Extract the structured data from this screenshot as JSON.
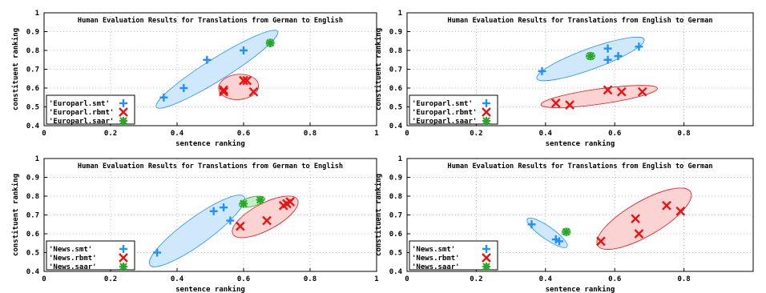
{
  "chart_data": [
    {
      "type": "scatter",
      "title": "Human Evaluation Results for Translations from German to English",
      "xlabel": "sentence ranking",
      "ylabel": "constituent ranking",
      "xlim": [
        0,
        1
      ],
      "ylim": [
        0.4,
        1
      ],
      "xticks": [
        {
          "v": 0,
          "label": "0"
        },
        {
          "v": 0.2,
          "label": "0.2"
        },
        {
          "v": 0.4,
          "label": "0.4"
        },
        {
          "v": 0.6,
          "label": "0.6"
        },
        {
          "v": 0.8,
          "label": "0.8"
        },
        {
          "v": 1,
          "label": "1"
        }
      ],
      "yticks": [
        {
          "v": 0.4,
          "label": "0.4"
        },
        {
          "v": 0.5,
          "label": "0.5"
        },
        {
          "v": 0.6,
          "label": "0.6"
        },
        {
          "v": 0.7,
          "label": "0.7"
        },
        {
          "v": 0.8,
          "label": "0.8"
        },
        {
          "v": 0.9,
          "label": "0.9"
        },
        {
          "v": 1,
          "label": "1"
        }
      ],
      "grid": true,
      "legend_position": "bottom-left",
      "series": [
        {
          "name": "'Europarl.smt'",
          "marker": "plus",
          "color": "#1e90ff",
          "fill": "#cfe8fb",
          "points": [
            [
              0.36,
              0.55
            ],
            [
              0.42,
              0.6
            ],
            [
              0.49,
              0.75
            ],
            [
              0.6,
              0.8
            ],
            [
              0.68,
              0.84
            ]
          ],
          "ellipse": {
            "cx": 0.52,
            "cy": 0.7,
            "rx": 0.215,
            "ry": 0.033,
            "angle_deg": 32
          }
        },
        {
          "name": "'Europarl.rbmt'",
          "marker": "cross",
          "color": "#ee1111",
          "fill": "#fbd3d3",
          "points": [
            [
              0.54,
              0.59
            ],
            [
              0.54,
              0.58
            ],
            [
              0.6,
              0.64
            ],
            [
              0.61,
              0.64
            ],
            [
              0.63,
              0.58
            ]
          ],
          "ellipse": {
            "cx": 0.585,
            "cy": 0.606,
            "rx": 0.06,
            "ry": 0.038,
            "angle_deg": 5
          }
        },
        {
          "name": "'Europarl.saar'",
          "marker": "star",
          "color": "#22aa22",
          "fill": "#c9ecc9",
          "points": [
            [
              0.68,
              0.84
            ]
          ],
          "ellipse": {
            "cx": 0.68,
            "cy": 0.84,
            "rx": 0.012,
            "ry": 0.012,
            "angle_deg": 0
          }
        }
      ]
    },
    {
      "type": "scatter",
      "title": "Human Evaluation Results for Translations from English to German",
      "xlabel": "sentence ranking",
      "ylabel": "constituent ranking",
      "xlim": [
        0,
        1
      ],
      "ylim": [
        0.4,
        1
      ],
      "xticks": [
        {
          "v": 0,
          "label": "0"
        },
        {
          "v": 0.2,
          "label": "0.2"
        },
        {
          "v": 0.4,
          "label": "0.4"
        },
        {
          "v": 0.6,
          "label": "0.6"
        },
        {
          "v": 0.8,
          "label": "0.8"
        }
      ],
      "yticks": [
        {
          "v": 0.4,
          "label": "0.4"
        },
        {
          "v": 0.5,
          "label": "0.5"
        },
        {
          "v": 0.6,
          "label": "0.6"
        },
        {
          "v": 0.7,
          "label": "0.7"
        },
        {
          "v": 0.8,
          "label": "0.8"
        },
        {
          "v": 0.9,
          "label": "0.9"
        },
        {
          "v": 1,
          "label": "1"
        }
      ],
      "grid": true,
      "legend_position": "bottom-left",
      "series": [
        {
          "name": "'Europarl.smt'",
          "marker": "plus",
          "color": "#1e90ff",
          "fill": "#cfe8fb",
          "points": [
            [
              0.39,
              0.69
            ],
            [
              0.58,
              0.75
            ],
            [
              0.58,
              0.81
            ],
            [
              0.61,
              0.77
            ],
            [
              0.67,
              0.82
            ]
          ],
          "ellipse": {
            "cx": 0.53,
            "cy": 0.755,
            "rx": 0.165,
            "ry": 0.03,
            "angle_deg": 20
          }
        },
        {
          "name": "'Europarl.rbmt'",
          "marker": "cross",
          "color": "#ee1111",
          "fill": "#fbd3d3",
          "points": [
            [
              0.43,
              0.52
            ],
            [
              0.47,
              0.51
            ],
            [
              0.58,
              0.59
            ],
            [
              0.62,
              0.58
            ],
            [
              0.68,
              0.58
            ]
          ],
          "ellipse": {
            "cx": 0.555,
            "cy": 0.555,
            "rx": 0.17,
            "ry": 0.022,
            "angle_deg": 8
          }
        },
        {
          "name": "'Europarl.saar'",
          "marker": "star",
          "color": "#22aa22",
          "fill": "#c9ecc9",
          "points": [
            [
              0.53,
              0.77
            ]
          ],
          "ellipse": {
            "cx": 0.53,
            "cy": 0.77,
            "rx": 0.013,
            "ry": 0.011,
            "angle_deg": 0
          }
        }
      ]
    },
    {
      "type": "scatter",
      "title": "Human Evaluation Results for Translations from German to English",
      "xlabel": "sentence ranking",
      "ylabel": "constituent ranking",
      "xlim": [
        0,
        1
      ],
      "ylim": [
        0.4,
        1
      ],
      "xticks": [
        {
          "v": 0,
          "label": "0"
        },
        {
          "v": 0.2,
          "label": "0.2"
        },
        {
          "v": 0.4,
          "label": "0.4"
        },
        {
          "v": 0.6,
          "label": "0.6"
        },
        {
          "v": 0.8,
          "label": "0.8"
        },
        {
          "v": 1,
          "label": "1"
        }
      ],
      "yticks": [
        {
          "v": 0.4,
          "label": "0.4"
        },
        {
          "v": 0.5,
          "label": "0.5"
        },
        {
          "v": 0.6,
          "label": "0.6"
        },
        {
          "v": 0.7,
          "label": "0.7"
        },
        {
          "v": 0.8,
          "label": "0.8"
        },
        {
          "v": 0.9,
          "label": "0.9"
        },
        {
          "v": 1,
          "label": "1"
        }
      ],
      "grid": true,
      "legend_position": "bottom-left",
      "series": [
        {
          "name": "'News.smt'",
          "marker": "plus",
          "color": "#1e90ff",
          "fill": "#cfe8fb",
          "points": [
            [
              0.34,
              0.5
            ],
            [
              0.51,
              0.72
            ],
            [
              0.54,
              0.74
            ],
            [
              0.56,
              0.67
            ]
          ],
          "ellipse": {
            "cx": 0.46,
            "cy": 0.615,
            "rx": 0.175,
            "ry": 0.04,
            "angle_deg": 36
          }
        },
        {
          "name": "'News.rbmt'",
          "marker": "cross",
          "color": "#ee1111",
          "fill": "#fbd3d3",
          "points": [
            [
              0.59,
              0.64
            ],
            [
              0.67,
              0.67
            ],
            [
              0.72,
              0.75
            ],
            [
              0.73,
              0.76
            ],
            [
              0.74,
              0.77
            ]
          ],
          "ellipse": {
            "cx": 0.665,
            "cy": 0.69,
            "rx": 0.11,
            "ry": 0.04,
            "angle_deg": 28
          }
        },
        {
          "name": "'News.saar'",
          "marker": "star",
          "color": "#22aa22",
          "fill": "#c9ecc9",
          "points": [
            [
              0.6,
              0.76
            ],
            [
              0.65,
              0.78
            ]
          ],
          "ellipse": {
            "cx": 0.625,
            "cy": 0.77,
            "rx": 0.04,
            "ry": 0.014,
            "angle_deg": 15
          }
        }
      ]
    },
    {
      "type": "scatter",
      "title": "Human Evaluation Results for Translations from English to German",
      "xlabel": "sentence ranking",
      "ylabel": "constituent ranking",
      "xlim": [
        0,
        1
      ],
      "ylim": [
        0.4,
        1
      ],
      "xticks": [
        {
          "v": 0,
          "label": "0"
        },
        {
          "v": 0.2,
          "label": "0.2"
        },
        {
          "v": 0.4,
          "label": "0.4"
        },
        {
          "v": 0.6,
          "label": "0.6"
        },
        {
          "v": 0.8,
          "label": "0.8"
        }
      ],
      "yticks": [
        {
          "v": 0.4,
          "label": "0.4"
        },
        {
          "v": 0.5,
          "label": "0.5"
        },
        {
          "v": 0.6,
          "label": "0.6"
        },
        {
          "v": 0.7,
          "label": "0.7"
        },
        {
          "v": 0.8,
          "label": "0.8"
        },
        {
          "v": 0.9,
          "label": "0.9"
        },
        {
          "v": 1,
          "label": "1"
        }
      ],
      "grid": true,
      "legend_position": "bottom-left",
      "series": [
        {
          "name": "'News.smt'",
          "marker": "plus",
          "color": "#1e90ff",
          "fill": "#cfe8fb",
          "points": [
            [
              0.36,
              0.65
            ],
            [
              0.43,
              0.57
            ],
            [
              0.44,
              0.56
            ]
          ],
          "ellipse": {
            "cx": 0.405,
            "cy": 0.605,
            "rx": 0.07,
            "ry": 0.018,
            "angle_deg": -35
          }
        },
        {
          "name": "'News.rbmt'",
          "marker": "cross",
          "color": "#ee1111",
          "fill": "#fbd3d3",
          "points": [
            [
              0.56,
              0.56
            ],
            [
              0.66,
              0.68
            ],
            [
              0.67,
              0.6
            ],
            [
              0.75,
              0.75
            ],
            [
              0.79,
              0.72
            ]
          ],
          "ellipse": {
            "cx": 0.685,
            "cy": 0.68,
            "rx": 0.155,
            "ry": 0.05,
            "angle_deg": 30
          }
        },
        {
          "name": "'News.saar'",
          "marker": "star",
          "color": "#22aa22",
          "fill": "#c9ecc9",
          "points": [
            [
              0.46,
              0.61
            ]
          ],
          "ellipse": {
            "cx": 0.46,
            "cy": 0.61,
            "rx": 0.012,
            "ry": 0.011,
            "angle_deg": 0
          }
        }
      ]
    }
  ]
}
